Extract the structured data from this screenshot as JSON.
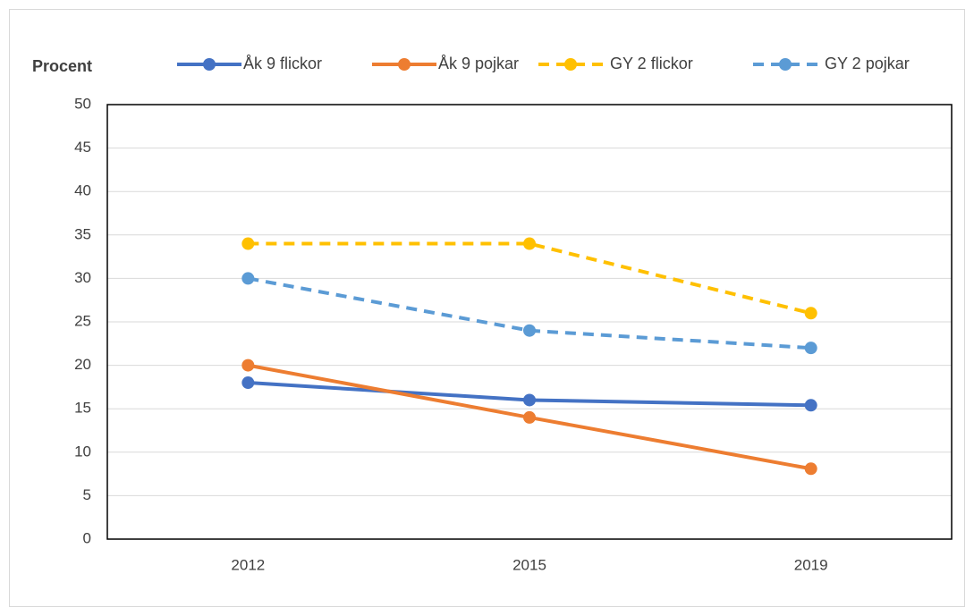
{
  "chart_data": {
    "type": "line",
    "ylabel": "Procent",
    "categories": [
      "2012",
      "2015",
      "2019"
    ],
    "series": [
      {
        "name": "Åk 9 flickor",
        "color": "#4472c4",
        "dashed": false,
        "values": [
          18,
          16,
          15.4
        ]
      },
      {
        "name": "Åk 9 pojkar",
        "color": "#ed7d31",
        "dashed": false,
        "values": [
          20,
          14,
          8.1
        ]
      },
      {
        "name": "GY 2 flickor",
        "color": "#ffc000",
        "dashed": true,
        "values": [
          34,
          34,
          26
        ]
      },
      {
        "name": "GY 2 pojkar",
        "color": "#5b9bd5",
        "dashed": true,
        "values": [
          30,
          24,
          22
        ]
      }
    ],
    "ylim": [
      0,
      50
    ],
    "yticks": [
      0,
      5,
      10,
      15,
      20,
      25,
      30,
      35,
      40,
      45,
      50
    ],
    "grid": true,
    "legend": "top"
  }
}
